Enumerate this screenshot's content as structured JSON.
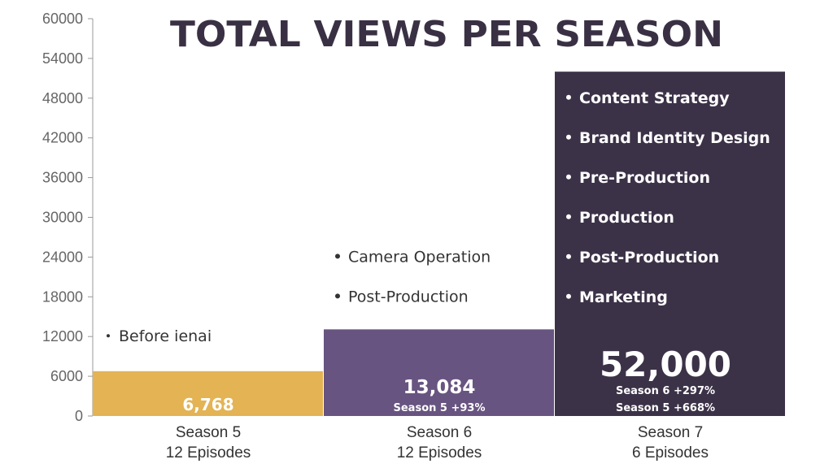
{
  "chart_data": {
    "type": "bar",
    "title": "TOTAL VIEWS PER SEASON",
    "xlabel": "",
    "ylabel": "",
    "ylim": [
      0,
      60000
    ],
    "yticks": [
      0,
      6000,
      12000,
      18000,
      24000,
      30000,
      36000,
      42000,
      48000,
      54000,
      60000
    ],
    "grid": false,
    "categories": [
      {
        "name": "Season 5",
        "sub": "12 Episodes"
      },
      {
        "name": "Season 6",
        "sub": "12 Episodes"
      },
      {
        "name": "Season 7",
        "sub": "6 Episodes"
      }
    ],
    "values": [
      6768,
      13084,
      52000
    ],
    "bars": [
      {
        "value_label": "6,768",
        "change_labels": [],
        "bullets": [
          "Before ienai"
        ],
        "color": "#E3B354",
        "text_color": "#ffffff",
        "bullet_color": "#333333"
      },
      {
        "value_label": "13,084",
        "change_labels": [
          "Season 5 +93%"
        ],
        "bullets": [
          "Camera Operation",
          "Post-Production"
        ],
        "color": "#685480",
        "text_color": "#ffffff",
        "bullet_color": "#333333"
      },
      {
        "value_label": "52,000",
        "change_labels": [
          "Season 6 +297%",
          "Season 5 +668%"
        ],
        "bullets": [
          "Content Strategy",
          "Brand Identity Design",
          "Pre-Production",
          "Production",
          "Post-Production",
          "Marketing"
        ],
        "color": "#3C3248",
        "text_color": "#ffffff",
        "bullet_color": "#ffffff"
      }
    ],
    "colors": {
      "title": "#3A3044",
      "axis": "#999999"
    }
  }
}
